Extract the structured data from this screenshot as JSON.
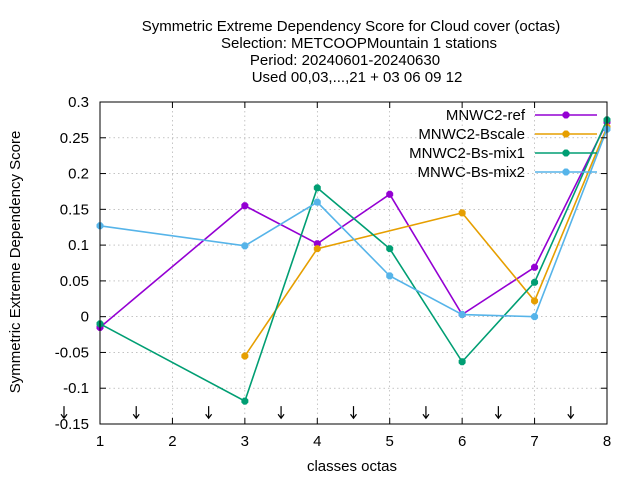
{
  "chart_data": {
    "type": "line",
    "title_lines": [
      "Symmetric Extreme Dependency Score  for Cloud cover (octas)",
      "Selection: METCOOPMountain      1 stations",
      "Period: 20240601-20240630",
      "Used 00,03,...,21 + 03 06 09 12"
    ],
    "xlabel": "classes octas",
    "ylabel": "Symmetric Extreme Dependency Score",
    "xlim": [
      1,
      8
    ],
    "ylim": [
      -0.15,
      0.3
    ],
    "x_ticks": [
      1,
      2,
      3,
      4,
      5,
      6,
      7,
      8
    ],
    "x_tick_labels": [
      "1",
      "2",
      "3",
      "4",
      "5",
      "6",
      "7",
      "8"
    ],
    "y_ticks": [
      -0.15,
      -0.1,
      -0.05,
      0,
      0.05,
      0.1,
      0.15,
      0.2,
      0.25,
      0.3
    ],
    "y_tick_labels": [
      "-0.15",
      "-0.1",
      "-0.05",
      "0",
      "0.05",
      "0.1",
      "0.15",
      "0.2",
      "0.25",
      "0.3"
    ],
    "grid": true,
    "legend_position": "top-right",
    "arrow_markers_x": [
      1,
      1.5,
      2.5,
      3.5,
      4.5,
      5.5,
      6.5,
      7.5
    ],
    "series": [
      {
        "name": "MNWC2-ref",
        "color": "#9400d3",
        "x": [
          1,
          3,
          4,
          5,
          6,
          7,
          8
        ],
        "y": [
          -0.015,
          0.155,
          0.102,
          0.171,
          0.003,
          0.069,
          0.272
        ]
      },
      {
        "name": "MNWC2-Bscale",
        "color": "#e69f00",
        "x": [
          3,
          4,
          6,
          7,
          8
        ],
        "y": [
          -0.055,
          0.095,
          0.145,
          0.022,
          0.265
        ]
      },
      {
        "name": "MNWC2-Bs-mix1",
        "color": "#009e73",
        "x": [
          1,
          3,
          4,
          5,
          6,
          7,
          8
        ],
        "y": [
          -0.01,
          -0.118,
          0.18,
          0.095,
          -0.063,
          0.048,
          0.275
        ]
      },
      {
        "name": "MNWC-Bs-mix2",
        "color": "#56b4e9",
        "x": [
          1,
          3,
          4,
          5,
          6,
          7,
          8
        ],
        "y": [
          0.127,
          0.099,
          0.16,
          0.057,
          0.003,
          0.0,
          0.262
        ]
      }
    ]
  }
}
